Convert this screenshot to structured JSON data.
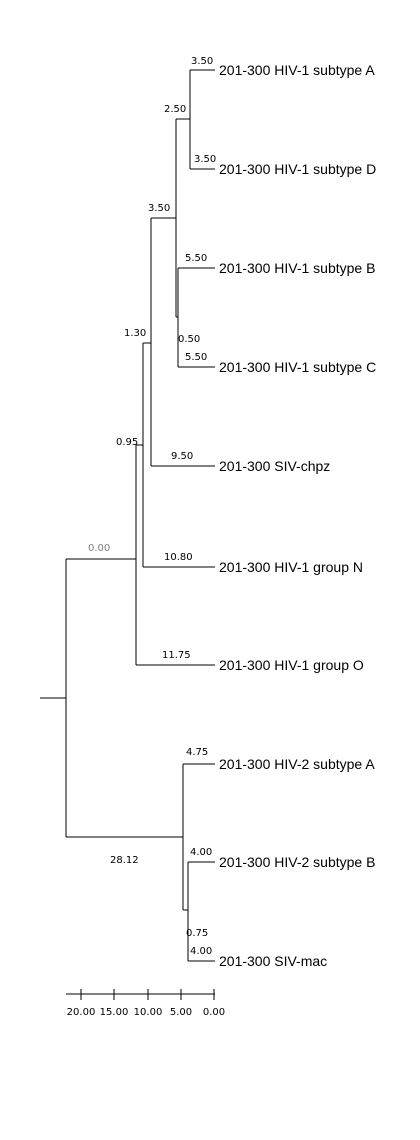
{
  "tree": {
    "taxa": [
      "201-300 HIV-1 subtype A",
      "201-300 HIV-1 subtype D",
      "201-300 HIV-1 subtype B",
      "201-300 HIV-1 subtype C",
      "201-300 SIV-chpz",
      "201-300 HIV-1 group N",
      "201-300 HIV-1 group O",
      "201-300 HIV-2 subtype A",
      "201-300 HIV-2 subtype B",
      "201-300 SIV-mac"
    ],
    "branch_labels": {
      "hiv1_a": "3.50",
      "hiv1_d": "3.50",
      "ad_node": "2.50",
      "hiv1_b": "5.50",
      "hiv1_c": "5.50",
      "bc_node": "0.50",
      "abcd_node": "3.50",
      "siv_chpz": "9.50",
      "chpz_node": "1.30",
      "hiv1_n": "10.80",
      "n_node": "0.95",
      "hiv1_o": "11.75",
      "hiv1_node": "0.00",
      "hiv2_a": "4.75",
      "hiv2_b": "4.00",
      "siv_mac": "4.00",
      "b_mac_node": "0.75",
      "hiv2_node": "28.12"
    },
    "scale": {
      "ticks": [
        "20.00",
        "15.00",
        "10.00",
        "5.00",
        "0.00"
      ]
    }
  }
}
